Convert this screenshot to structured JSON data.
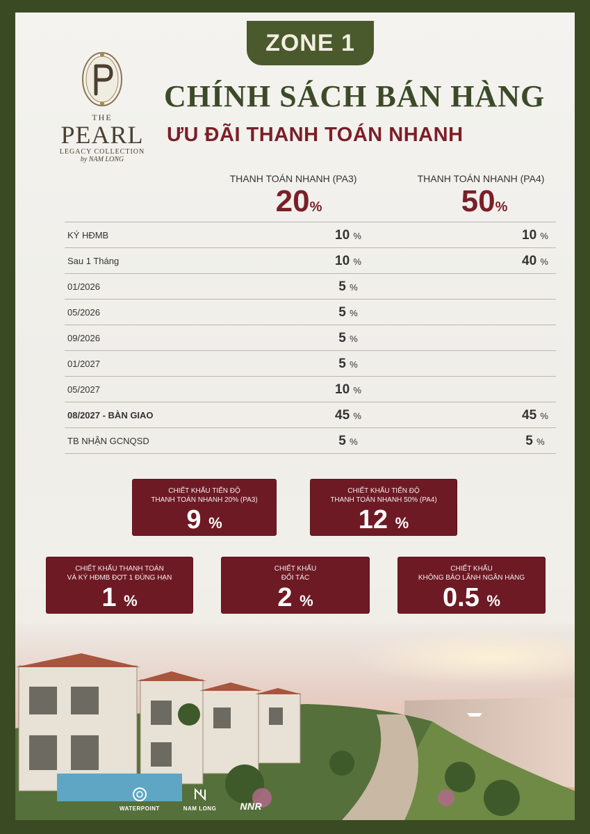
{
  "header": {
    "zone": "ZONE 1",
    "title": "CHÍNH SÁCH BÁN HÀNG",
    "subtitle": "ƯU ĐÃI THANH TOÁN NHANH"
  },
  "logo": {
    "the": "THE",
    "pearl": "PEARL",
    "sub": "LEGACY COLLECTION",
    "by": "by NAM LONG"
  },
  "columns": [
    {
      "name": "THANH TOÁN NHANH (PA3)",
      "value": "20",
      "unit": "%"
    },
    {
      "name": "THANH TOÁN NHANH (PA4)",
      "value": "50",
      "unit": "%"
    }
  ],
  "rows": [
    {
      "label": "KÝ HĐMB",
      "pa3": "10",
      "pa4": "10"
    },
    {
      "label": "Sau 1 Tháng",
      "pa3": "10",
      "pa4": "40"
    },
    {
      "label": "01/2026",
      "pa3": "5",
      "pa4": ""
    },
    {
      "label": "05/2026",
      "pa3": "5",
      "pa4": ""
    },
    {
      "label": "09/2026",
      "pa3": "5",
      "pa4": ""
    },
    {
      "label": "01/2027",
      "pa3": "5",
      "pa4": ""
    },
    {
      "label": "05/2027",
      "pa3": "10",
      "pa4": ""
    },
    {
      "label": "08/2027 - BÀN GIAO",
      "pa3": "45",
      "pa4": "45",
      "bold": true
    },
    {
      "label": "TB NHẬN GCNQSD",
      "pa3": "5",
      "pa4": "5"
    }
  ],
  "percent_symbol": "%",
  "discounts": [
    {
      "caption1": "CHIẾT KHẤU TIẾN ĐỘ",
      "caption2": "THANH TOÁN NHANH 20% (PA3)",
      "value": "9"
    },
    {
      "caption1": "CHIẾT KHẤU TIẾN ĐỘ",
      "caption2": "THANH TOÁN NHANH 50% (PA4)",
      "value": "12"
    },
    {
      "caption1": "CHIẾT KHẤU THANH TOÁN",
      "caption2": "VÀ KÝ HĐMB ĐỢT 1 ĐÚNG HẠN",
      "value": "1"
    },
    {
      "caption1": "CHIẾT KHẤU",
      "caption2": "ĐỐI TÁC",
      "value": "2"
    },
    {
      "caption1": "CHIẾT KHẤU",
      "caption2": "KHÔNG BẢO LÃNH NGÂN HÀNG",
      "value": "0.5"
    }
  ],
  "brands": [
    "WATERPOINT",
    "NAM LONG",
    "NNR"
  ],
  "colors": {
    "frame": "#3a4a22",
    "accent": "#7a1f28",
    "box": "#6e1a24",
    "title": "#3c4a28"
  }
}
